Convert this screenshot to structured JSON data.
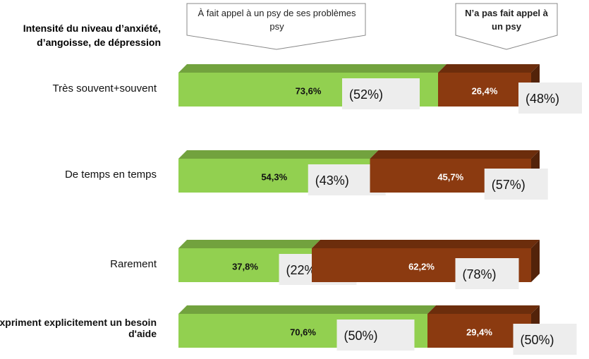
{
  "chart_data": {
    "type": "stacked_bar_3d",
    "title": "Intensité du niveau d’anxiété, d’angoisse, de dépression",
    "categories": [
      "Très souvent+souvent",
      "De temps en temps",
      "Rarement",
      "Expriment explicitement un besoin d'aide"
    ],
    "xlim": [
      0,
      100
    ],
    "series": [
      {
        "name": "À fait appel à un psy de ses problèmes psy",
        "color": "#92d050",
        "values": [
          73.6,
          54.3,
          37.8,
          70.6
        ],
        "value_labels": [
          "73,6%",
          "54,3%",
          "37,8%",
          "70,6%"
        ],
        "bracket_values": [
          52,
          43,
          22,
          50
        ],
        "bracket_labels": [
          "(52%)",
          "(43%)",
          "(22%)",
          "(50%)"
        ]
      },
      {
        "name": "N’a pas fait appel à un psy",
        "color": "#8b3a10",
        "values": [
          26.4,
          45.7,
          62.2,
          29.4
        ],
        "value_labels": [
          "26,4%",
          "45,7%",
          "62,2%",
          "29,4%"
        ],
        "bracket_values": [
          48,
          57,
          78,
          50
        ],
        "bracket_labels": [
          "(48%)",
          "(57%)",
          "(78%)",
          "(50%)"
        ]
      }
    ]
  }
}
